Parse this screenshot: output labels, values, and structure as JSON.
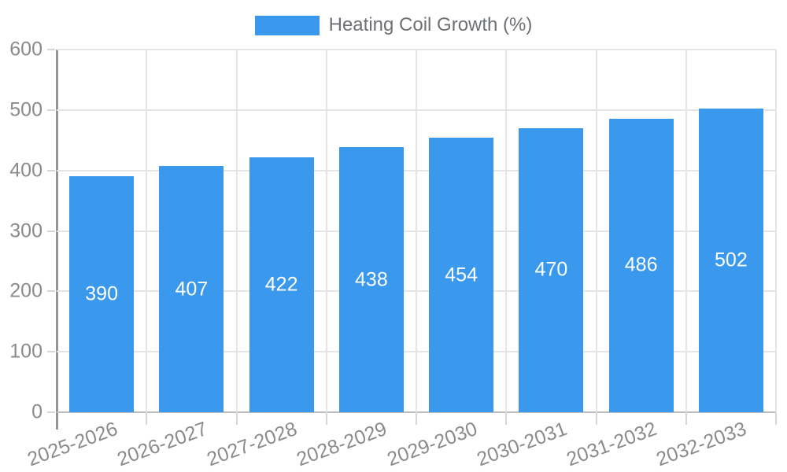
{
  "legend": {
    "label": "Heating Coil Growth (%)"
  },
  "chart_data": {
    "type": "bar",
    "title": "Heating Coil Growth (%)",
    "categories": [
      "2025-2026",
      "2026-2027",
      "2027-2028",
      "2028-2029",
      "2029-2030",
      "2030-2031",
      "2031-2032",
      "2032-2033"
    ],
    "values": [
      390,
      407,
      422,
      438,
      454,
      470,
      486,
      502
    ],
    "value_labels": [
      "390",
      "407",
      "422",
      "438",
      "454",
      "470",
      "486",
      "502"
    ],
    "xlabel": "",
    "ylabel": "",
    "ylim": [
      0,
      600
    ],
    "ytick_step": 100,
    "ytick_labels": [
      "0",
      "100",
      "200",
      "300",
      "400",
      "500",
      "600"
    ],
    "grid": true,
    "legend_position": "top",
    "bar_color": "#3a99ed",
    "value_label_color": "#ffffff",
    "tick_label_color": "#8b8b8b",
    "gridline_color": "#e5e5e5",
    "axis_line_color": "#969696"
  }
}
